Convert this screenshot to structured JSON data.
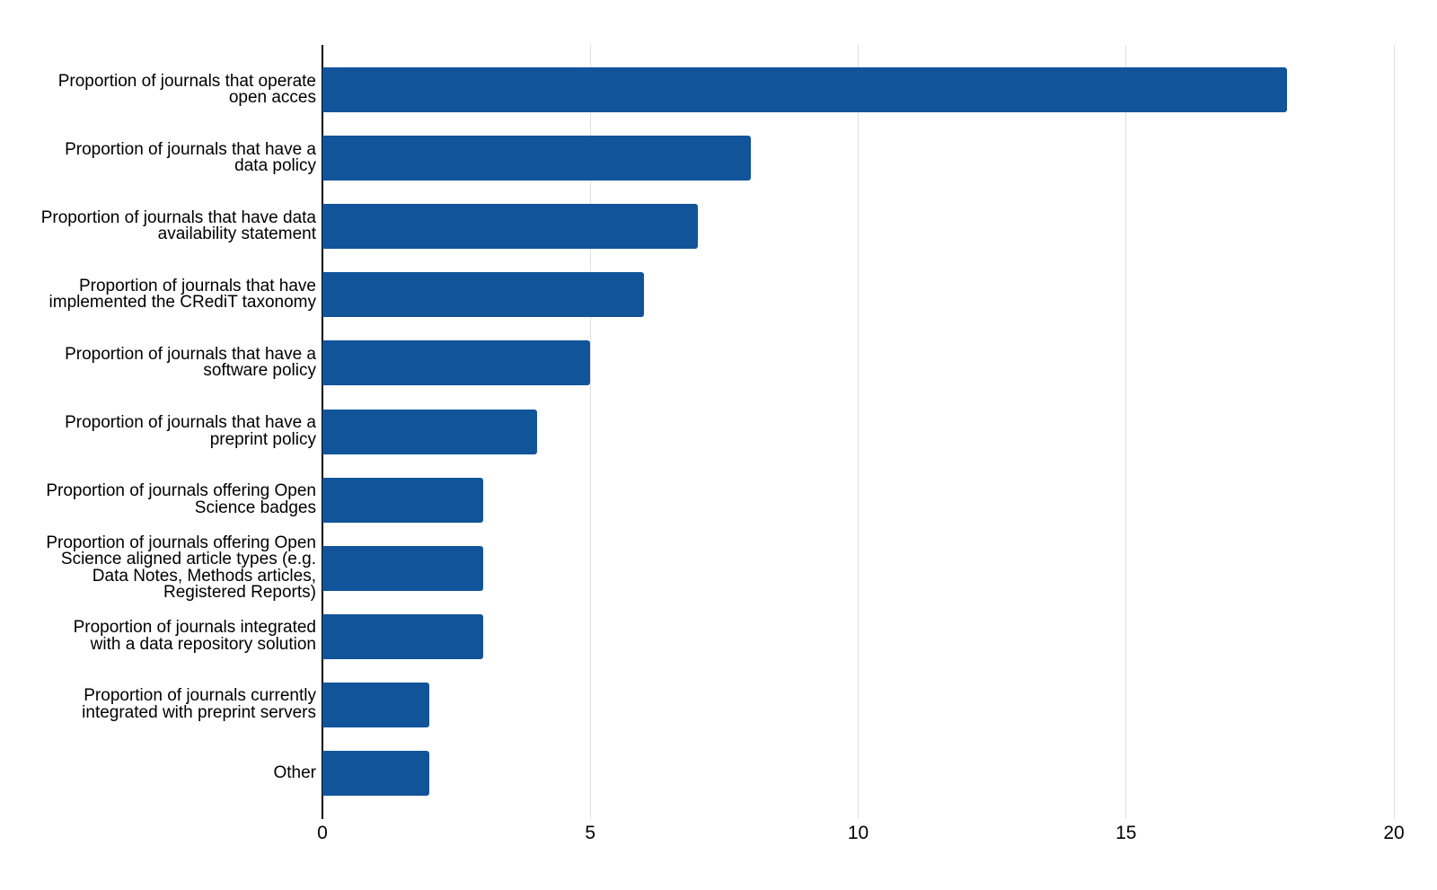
{
  "chart_data": {
    "type": "bar",
    "orientation": "horizontal",
    "title": "",
    "xlabel": "",
    "ylabel": "",
    "categories": [
      "Proportion of journals that operate\nopen acces",
      "Proportion of journals that have a\ndata policy",
      "Proportion of journals that have data\navailability statement",
      "Proportion of journals that have\nimplemented the CRediT taxonomy",
      "Proportion of journals that have a\nsoftware policy",
      "Proportion of journals that have a\npreprint policy",
      "Proportion of journals offering Open\nScience badges",
      "Proportion of journals offering Open\nScience aligned article types (e.g.\nData Notes, Methods articles,\nRegistered Reports)",
      "Proportion of journals integrated\nwith a data repository solution",
      "Proportion of journals currently\nintegrated with preprint servers",
      "Other"
    ],
    "values": [
      18,
      8,
      7,
      6,
      5,
      4,
      3,
      3,
      3,
      2,
      2
    ],
    "xlim": [
      0,
      20
    ],
    "x_ticks": [
      0,
      5,
      10,
      15,
      20
    ],
    "grid": true,
    "legend": false,
    "colors": {
      "bar": "#11549A",
      "gridline": "#E0E0E0",
      "axis_line": "#000000",
      "label_text": "#000000",
      "tick_text": "#000000",
      "background": "#FFFFFF"
    }
  }
}
